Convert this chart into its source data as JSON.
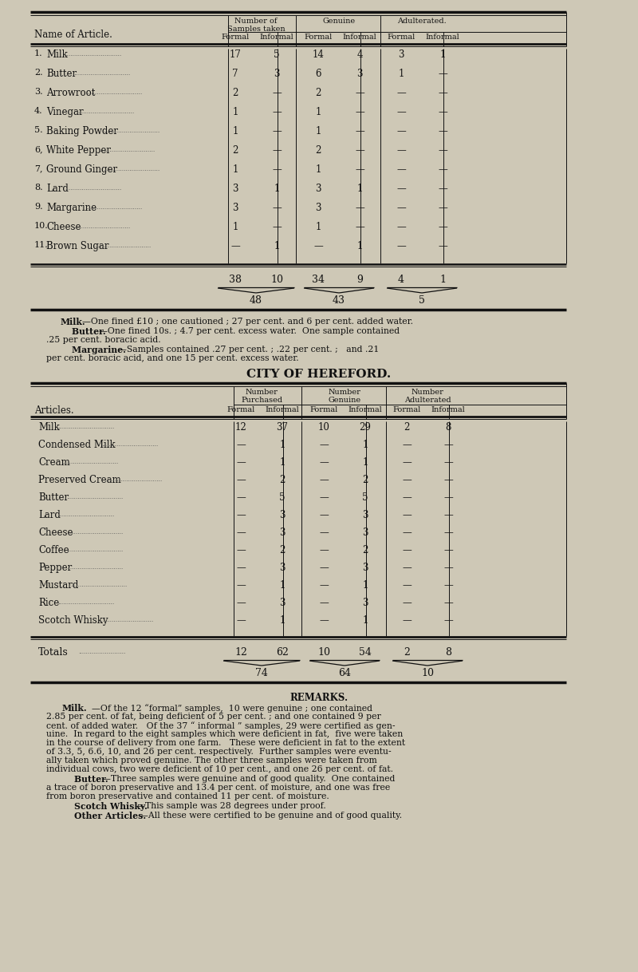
{
  "bg_color": "#cec8b6",
  "text_color": "#1a1a1a",
  "table1_header_col1": "Name of Article.",
  "table1_col_headers_top": [
    "Number of\nSamples taken",
    "Genuine",
    "Adulterated."
  ],
  "table1_col_headers_sub": [
    "Formal",
    "Informal",
    "Formal",
    "Informal",
    "Formal",
    "Informal"
  ],
  "table1_rows": [
    [
      "1.",
      "Milk",
      "17",
      "5",
      "14",
      "4",
      "3",
      "1"
    ],
    [
      "2.",
      "Butter",
      "7",
      "3",
      "6",
      "3",
      "1",
      "—"
    ],
    [
      "3.",
      "Arrowroot",
      "2",
      "—",
      "2",
      "—",
      "—",
      "—"
    ],
    [
      "4.",
      "Vinegar",
      "1",
      "—",
      "1",
      "—",
      "—",
      "—"
    ],
    [
      "5.",
      "Baking Powder",
      "1",
      "—",
      "1",
      "—",
      "—",
      "—"
    ],
    [
      "6,",
      "White Pepper",
      "2",
      "—",
      "2",
      "—",
      "—",
      "—"
    ],
    [
      "7,",
      "Ground Ginger",
      "1",
      "—",
      "1",
      "—",
      "—",
      "—"
    ],
    [
      "8.",
      "Lard",
      "3",
      "1",
      "3",
      "1",
      "—",
      "—"
    ],
    [
      "9.",
      "Margarine",
      "3",
      "—",
      "3",
      "—",
      "—",
      "—"
    ],
    [
      "10.",
      "Cheese",
      "1",
      "—",
      "1",
      "—",
      "—",
      "—"
    ],
    [
      "11.",
      "Brown Sugar",
      "—",
      "1",
      "—",
      "1",
      "—",
      "—"
    ]
  ],
  "table1_totals": [
    "38",
    "10",
    "34",
    "9",
    "4",
    "1"
  ],
  "table1_subtotals": [
    "48",
    "43",
    "5"
  ],
  "city_title": "CITY OF HEREFORD.",
  "table2_header_col1": "Articles.",
  "table2_col_headers_top": [
    "Number\nPurchased",
    "Number\nGenuine",
    "Number\nAdulterated"
  ],
  "table2_col_headers_sub": [
    "Formal",
    "Informal",
    "Formal",
    "Informal",
    "Formal",
    "Informal"
  ],
  "table2_rows": [
    [
      "Milk",
      "12",
      "37",
      "10",
      "29",
      "2",
      "8"
    ],
    [
      "Condensed Milk",
      "—",
      "1",
      "—",
      "1",
      "—",
      "—"
    ],
    [
      "Cream",
      "—",
      "1",
      "—",
      "1",
      "—",
      "—"
    ],
    [
      "Preserved Cream",
      "—",
      "2",
      "—",
      "2",
      "—",
      "—"
    ],
    [
      "Butter",
      "—",
      "5",
      "—",
      "5",
      "—",
      "—"
    ],
    [
      "Lard",
      "—",
      "3",
      "—",
      "3",
      "—",
      "—"
    ],
    [
      "Cheese",
      "—",
      "3",
      "—",
      "3",
      "—",
      "—"
    ],
    [
      "Coffee",
      "—",
      "2",
      "—",
      "2",
      "—",
      "—"
    ],
    [
      "Pepper",
      "—",
      "3",
      "—",
      "3",
      "—",
      "—"
    ],
    [
      "Mustard",
      "—",
      "1",
      "—",
      "1",
      "—",
      "—"
    ],
    [
      "Rice",
      "—",
      "3",
      "—",
      "3",
      "—",
      "—"
    ],
    [
      "Scotch Whisky",
      "—",
      "1",
      "—",
      "1",
      "—",
      "—"
    ]
  ],
  "table2_totals_label": "Totals",
  "table2_totals": [
    "12",
    "62",
    "10",
    "54",
    "2",
    "8"
  ],
  "table2_subtotals": [
    "74",
    "64",
    "10"
  ],
  "remarks2_title": "REMARKS.",
  "remarks1_milk": "Milk.—One fined £10 ; one cautioned ; 27 per cent. and 6 per cent. added",
  "remarks1_milk2": "water.",
  "remarks1_butter": "Butter.—One fined 10s. ; 4.7 per cent. excess water.  One sample contained",
  "remarks1_butter2": ".25 per cent. boracic acid.",
  "remarks1_marg": "Margarine.—Samples contained .27 per cent. ; .22 per cent. ;  and .21",
  "remarks1_marg2": "per cent. boracic acid, and one 15 per cent. excess water."
}
